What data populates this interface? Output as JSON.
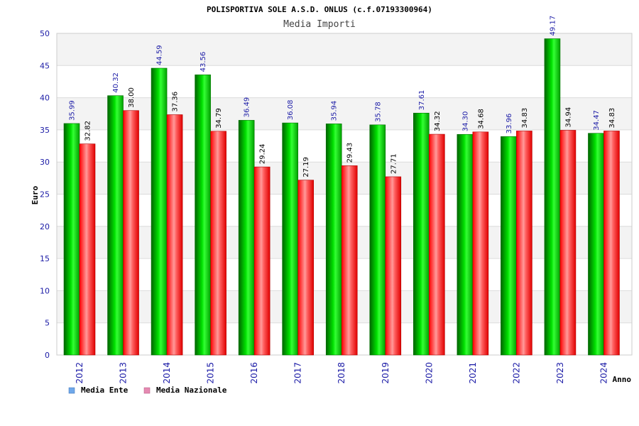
{
  "chart_data": {
    "type": "bar",
    "title": "POLISPORTIVA SOLE A.S.D. ONLUS (c.f.07193300964)",
    "subtitle": "Media Importi",
    "ylabel": "Euro",
    "xlabel": "Anno",
    "ylim": [
      0,
      50
    ],
    "yticks": [
      0,
      5,
      10,
      15,
      20,
      25,
      30,
      35,
      40,
      45,
      50
    ],
    "grid": true,
    "legend_position": "bottom-left",
    "categories": [
      "2012",
      "2013",
      "2014",
      "2015",
      "2016",
      "2017",
      "2018",
      "2019",
      "2020",
      "2021",
      "2022",
      "2023",
      "2024"
    ],
    "series": [
      {
        "name": "Media Ente",
        "color": "#00c000",
        "legend_color": "#6fa8ea",
        "values": [
          35.99,
          40.32,
          44.59,
          43.56,
          36.49,
          36.08,
          35.94,
          35.78,
          37.61,
          34.3,
          33.96,
          49.17,
          34.47
        ],
        "labels": [
          "35.99",
          "40.32",
          "44.59",
          "43.56",
          "36.49",
          "36.08",
          "35.94",
          "35.78",
          "37.61",
          "34.30",
          "33.96",
          "49.17",
          "34.47"
        ]
      },
      {
        "name": "Media Nazionale",
        "color": "#ff0000",
        "legend_color": "#e58ab2",
        "values": [
          32.82,
          38.0,
          37.36,
          34.79,
          29.24,
          27.19,
          29.43,
          27.71,
          34.32,
          34.68,
          34.83,
          34.94,
          34.83
        ],
        "labels": [
          "32.82",
          "38.00",
          "37.36",
          "34.79",
          "29.24",
          "27.19",
          "29.43",
          "27.71",
          "34.32",
          "34.68",
          "34.83",
          "34.94",
          "34.83"
        ]
      }
    ]
  }
}
